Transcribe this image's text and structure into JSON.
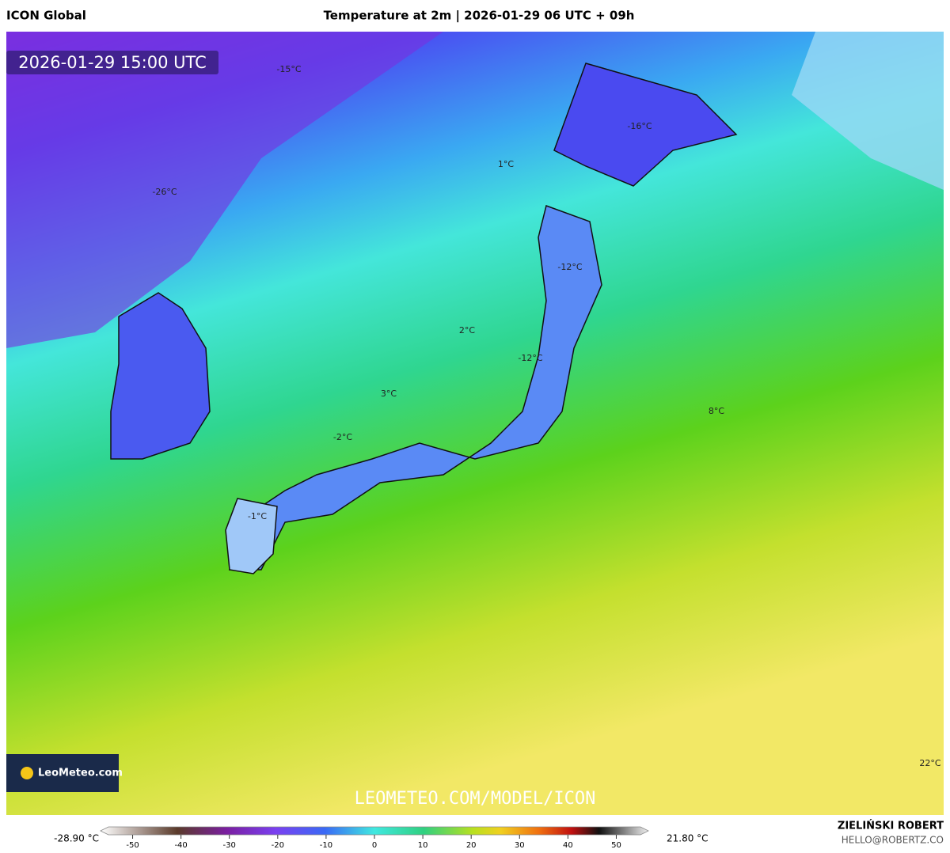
{
  "header": {
    "model": "ICON Global",
    "title": "Temperature at 2m | 2026-01-29 06 UTC + 09h"
  },
  "valid_time": "2026-01-29 15:00 UTC",
  "map_labels": [
    "-15°C",
    "-26°C",
    "-16°C",
    "1°C",
    "-12°C",
    "2°C",
    "-12°C",
    "3°C",
    "8°C",
    "-2°C",
    "-1°C",
    "22°C"
  ],
  "logo": "LeoMeteo.com",
  "watermark": "LEOMETEO.COM/MODEL/ICON",
  "colorbar": {
    "min_label": "-28.90 °C",
    "max_label": "21.80 °C",
    "lim": [
      -55,
      55
    ],
    "ticks": [
      -50,
      -40,
      -30,
      -20,
      -10,
      0,
      10,
      20,
      30,
      40,
      50
    ]
  },
  "credits": {
    "author": "ZIELIŃSKI ROBERT",
    "email": "HELLO@ROBERTZ.CO"
  }
}
